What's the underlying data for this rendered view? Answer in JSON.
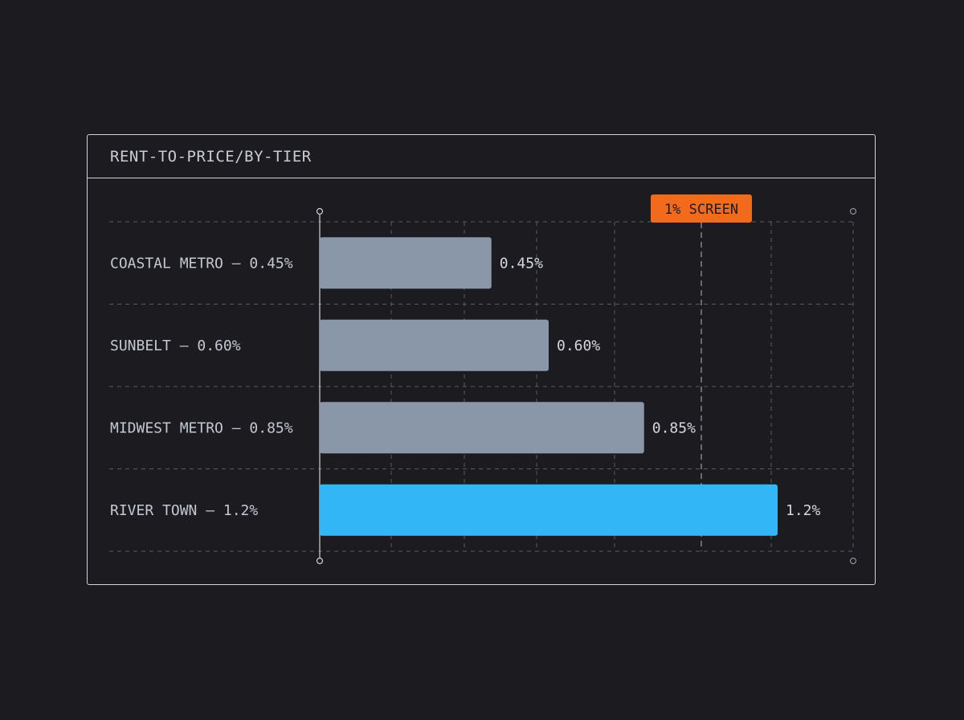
{
  "panel": {
    "title": "RENT-TO-PRICE/BY-TIER"
  },
  "colors": {
    "background": "#1c1c20",
    "bar_default": "#8a97a9",
    "bar_highlight": "#33b6f5",
    "badge": "#f26a1b",
    "grid": "#5a5d66"
  },
  "chart_data": {
    "type": "bar",
    "orientation": "horizontal",
    "title": "RENT-TO-PRICE/BY-TIER",
    "categories": [
      "COASTAL METRO — 0.45%",
      "SUNBELT — 0.60%",
      "MIDWEST METRO — 0.85%",
      "RIVER TOWN — 1.2%"
    ],
    "values": [
      0.45,
      0.6,
      0.85,
      1.2
    ],
    "value_labels": [
      "0.45%",
      "0.60%",
      "0.85%",
      "1.2%"
    ],
    "highlight_index": 3,
    "xlim": [
      0,
      1.45
    ],
    "grid": true,
    "reference_line": {
      "value": 1.0,
      "label": "1% SCREEN"
    }
  }
}
